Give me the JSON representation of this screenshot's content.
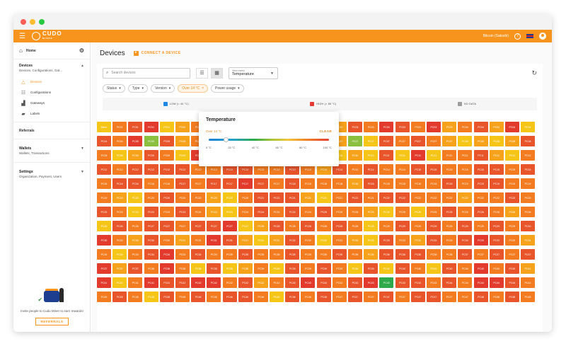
{
  "appbar": {
    "account": "Bitcoin (Satoshi)"
  },
  "sidebar": {
    "home": "Home",
    "devices_section": {
      "title": "Devices",
      "subtitle": "Devices, Configurations, Gat..."
    },
    "items": [
      {
        "label": "Devices",
        "icon": "warning-triangle-icon",
        "active": true
      },
      {
        "label": "Configurations",
        "icon": "sliders-icon",
        "active": false
      },
      {
        "label": "Gateways",
        "icon": "gateway-icon",
        "active": false
      },
      {
        "label": "Labels",
        "icon": "label-icon",
        "active": false
      }
    ],
    "referrals": "Referrals",
    "wallets": {
      "title": "Wallets",
      "subtitle": "Wallets, Transactions"
    },
    "settings": {
      "title": "Settings",
      "subtitle": "Organization, Payment, Users"
    },
    "promo": {
      "text": "Invite people to Cudo Miner to earn rewards!",
      "button": "REFERRALS"
    }
  },
  "main": {
    "title": "Devices",
    "connect": "CONNECT A DEVICE",
    "search_placeholder": "Search devices",
    "metric": {
      "label": "View metric",
      "value": "Temperature"
    },
    "filters": [
      "Status",
      "Type",
      "Version",
      "Over 14 °C",
      "Power usage"
    ],
    "legend": [
      {
        "label": "LOW (< 40 °C)",
        "color": "#1e88e5"
      },
      {
        "label": "HIGH (> 85 °C)",
        "color": "#e53935"
      },
      {
        "label": "NO DATA",
        "color": "#9e9e9e"
      }
    ]
  },
  "popover": {
    "title": "Temperature",
    "current": "Over 14 °C",
    "clear": "CLEAR",
    "ticks": [
      "0 °C",
      "20 °C",
      "40 °C",
      "60 °C",
      "80 °C",
      "100 °C"
    ],
    "threshold_fraction": 0.14
  },
  "grid": {
    "colors": [
      "#f5c518",
      "#f7a21b",
      "#f47c20",
      "#e9552b",
      "#e23b2e",
      "#8bbf3f",
      "#2eaa4a"
    ],
    "rows": [
      {
        "labels": [
          "Miner",
          "PC01",
          "PC01",
          "PC01",
          "PC01",
          "PC02",
          "PC02",
          "PC02",
          "PC02",
          "PC02",
          "PC02",
          "PC03",
          "PC03",
          "PC03",
          "PC03",
          "PC03",
          "PC03",
          "PC03",
          "PC03",
          "PC03",
          "PC03",
          "PC03",
          "PC03",
          "PC04",
          "PC04",
          "PC04",
          "PC04",
          "PC04"
        ],
        "c": [
          0,
          2,
          3,
          4,
          0,
          1,
          2,
          3,
          4,
          0,
          1,
          2,
          3,
          4,
          0,
          1,
          3,
          2,
          4,
          3,
          2,
          4,
          1,
          2,
          3,
          1,
          4,
          0
        ]
      },
      {
        "labels": [
          "PC04",
          "PC04",
          "PC05",
          "PC05",
          "PC05",
          "PC05",
          "PC05",
          "PC05",
          "PC06",
          "PC06",
          "PC06",
          "PC06",
          "PC06",
          "PC06",
          "PC07",
          "PC07",
          "PC07",
          "PC07",
          "PC07",
          "PC07",
          "PC07",
          "PC07",
          "PC07",
          "PC08",
          "PC08",
          "PC08",
          "PC08",
          "PC08"
        ],
        "c": [
          3,
          2,
          4,
          5,
          3,
          1,
          2,
          4,
          0,
          3,
          2,
          1,
          4,
          1,
          2,
          1,
          5,
          0,
          3,
          2,
          3,
          2,
          1,
          0,
          1,
          0,
          1,
          3
        ]
      },
      {
        "labels": [
          "PC08",
          "PC08",
          "PC09",
          "PC09",
          "PC09",
          "PC09",
          "PC09",
          "PC09",
          "PC10",
          "PC10",
          "PC10",
          "PC10",
          "PC10",
          "PC10",
          "PC10",
          "PC10",
          "PC10",
          "PC10",
          "PC11",
          "PC11",
          "PC11",
          "PC11",
          "PC11",
          "PC11",
          "PC11",
          "PC11",
          "PC11",
          "PC12"
        ],
        "c": [
          2,
          0,
          1,
          3,
          2,
          0,
          4,
          3,
          1,
          0,
          3,
          1,
          2,
          3,
          2,
          0,
          1,
          0,
          3,
          0,
          4,
          0,
          2,
          2,
          3,
          1,
          0,
          2
        ]
      },
      {
        "labels": [
          "PC12",
          "PC12",
          "PC12",
          "PC12",
          "PC12",
          "PC12",
          "PC12",
          "PC13",
          "PC13",
          "PC13",
          "PC13",
          "PC13",
          "PC13",
          "PC13",
          "PC14",
          "PC14",
          "PC14",
          "PC14",
          "PC14",
          "PC14",
          "PC15",
          "PC15",
          "PC15",
          "PC15",
          "PC15",
          "PC15",
          "PC15",
          "PC16"
        ],
        "c": [
          3,
          2,
          3,
          3,
          3,
          3,
          2,
          2,
          3,
          3,
          2,
          2,
          3,
          2,
          1,
          3,
          2,
          3,
          2,
          2,
          3,
          3,
          2,
          2,
          3,
          3,
          2,
          3
        ]
      },
      {
        "labels": [
          "PC16",
          "PC16",
          "PC16",
          "PC16",
          "PC16",
          "PC17",
          "PC17",
          "PC17",
          "PC17",
          "PC17",
          "PC17",
          "PC17",
          "PC18",
          "PC18",
          "PC18",
          "PC18",
          "PC18",
          "PC18",
          "PC18",
          "PC18",
          "PC18",
          "PC18",
          "PC18",
          "PC19",
          "PC19",
          "PC19",
          "PC19",
          "PC19"
        ],
        "c": [
          2,
          3,
          3,
          2,
          2,
          3,
          2,
          3,
          3,
          4,
          3,
          2,
          3,
          2,
          2,
          2,
          1,
          3,
          2,
          2,
          2,
          2,
          3,
          2,
          3,
          3,
          2,
          2
        ]
      },
      {
        "labels": [
          "PC19",
          "PC19",
          "PC20",
          "PC20",
          "PC20",
          "PC20",
          "PC20",
          "PC20",
          "PC20",
          "PC20",
          "PC21",
          "PC21",
          "PC21",
          "PC21",
          "PC21",
          "PC21",
          "PC21",
          "PC21",
          "PC22",
          "PC22",
          "PC22",
          "PC22",
          "PC22",
          "PC22",
          "PC22",
          "PC22",
          "PC22",
          "PC23"
        ],
        "c": [
          2,
          1,
          0,
          2,
          3,
          2,
          2,
          1,
          0,
          2,
          3,
          3,
          3,
          1,
          0,
          2,
          3,
          2,
          3,
          3,
          2,
          2,
          2,
          1,
          2,
          2,
          3,
          2
        ]
      },
      {
        "labels": [
          "PC23",
          "PC23",
          "PC23",
          "PC23",
          "PC23",
          "PC23",
          "PC24",
          "PC24",
          "PC24",
          "PC24",
          "PC24",
          "PC24",
          "PC24",
          "PC24",
          "PC25",
          "PC25",
          "PC25",
          "PC25",
          "PC25",
          "PC25",
          "PC25",
          "PC25",
          "PC25",
          "PC25",
          "PC26",
          "PC26",
          "PC26",
          "PC26"
        ],
        "c": [
          3,
          2,
          0,
          3,
          2,
          3,
          2,
          1,
          0,
          2,
          3,
          2,
          3,
          2,
          3,
          2,
          2,
          1,
          0,
          2,
          0,
          2,
          3,
          2,
          3,
          2,
          1,
          2
        ]
      },
      {
        "labels": [
          "PC26",
          "PC26",
          "PC26",
          "PC27",
          "PC27",
          "PC27",
          "PC27",
          "PC27",
          "PC27",
          "PC27",
          "PC28",
          "PC28",
          "PC28",
          "PC28",
          "PC28",
          "PC28",
          "PC28",
          "PC29",
          "PC29",
          "PC29",
          "PC29",
          "PC29",
          "PC29",
          "PC29",
          "PC29",
          "PC29",
          "PC29",
          "PC30"
        ],
        "c": [
          0,
          3,
          2,
          3,
          3,
          2,
          3,
          3,
          4,
          0,
          1,
          3,
          2,
          3,
          2,
          3,
          2,
          0,
          2,
          3,
          2,
          3,
          2,
          3,
          2,
          3,
          2,
          3
        ]
      },
      {
        "labels": [
          "PC30",
          "PC30",
          "PC30",
          "PC30",
          "PC30",
          "PC31",
          "PC31",
          "PC31",
          "PC31",
          "PC31",
          "PC31",
          "PC31",
          "PC32",
          "PC32",
          "PC32",
          "PC32",
          "PC33",
          "PC33",
          "PC33",
          "PC33",
          "PC33",
          "PC33",
          "PC33",
          "PC33",
          "PC33",
          "PC33",
          "PC33",
          "PC34"
        ],
        "c": [
          4,
          2,
          1,
          3,
          2,
          1,
          2,
          4,
          3,
          1,
          0,
          1,
          3,
          2,
          0,
          2,
          1,
          0,
          3,
          2,
          1,
          3,
          2,
          3,
          4,
          3,
          2,
          1
        ]
      },
      {
        "labels": [
          "PC34",
          "PC34",
          "PC34",
          "PC34",
          "PC34",
          "PC34",
          "PC34",
          "PC34",
          "PC35",
          "PC35",
          "PC35",
          "PC35",
          "PC35",
          "PC35",
          "PC35",
          "PC36",
          "PC36",
          "PC36",
          "PC36",
          "PC36",
          "PC36",
          "PC36",
          "PC36",
          "PC37",
          "PC37",
          "PC37",
          "PC37",
          "PC37"
        ],
        "c": [
          2,
          0,
          2,
          3,
          4,
          2,
          3,
          2,
          2,
          3,
          2,
          2,
          3,
          2,
          2,
          3,
          2,
          1,
          3,
          3,
          3,
          2,
          2,
          3,
          2,
          3,
          2,
          3
        ]
      },
      {
        "labels": [
          "PC37",
          "PC37",
          "PC37",
          "PC38",
          "PC38",
          "PC38",
          "PC38",
          "PC38",
          "PC38",
          "PC38",
          "PC39",
          "PC39",
          "PC39",
          "PC39",
          "PC39",
          "PC39",
          "PC39",
          "PC39",
          "PC40",
          "PC40",
          "PC40",
          "PC40",
          "PC40",
          "PC40",
          "PC40",
          "PC40",
          "PC40",
          "PC41"
        ],
        "c": [
          4,
          1,
          3,
          2,
          4,
          2,
          0,
          3,
          0,
          1,
          2,
          0,
          3,
          2,
          3,
          2,
          0,
          3,
          0,
          3,
          2,
          0,
          3,
          2,
          4,
          2,
          3,
          1
        ]
      },
      {
        "labels": [
          "PC41",
          "PC41",
          "PC41",
          "PC41",
          "PC41",
          "PC42",
          "PC42",
          "PC42",
          "PC42",
          "PC42",
          "PC42",
          "PC42",
          "PC43",
          "PC43",
          "PC43",
          "PC43",
          "PC43",
          "PC43",
          "PC43",
          "PC43",
          "PC43",
          "PC43",
          "PC44",
          "PC44",
          "PC44",
          "PC44",
          "PC44",
          "PC44"
        ],
        "c": [
          4,
          0,
          2,
          4,
          3,
          3,
          4,
          4,
          2,
          3,
          1,
          2,
          3,
          4,
          3,
          2,
          3,
          4,
          6,
          3,
          3,
          2,
          3,
          2,
          4,
          4,
          3,
          2
        ]
      },
      {
        "labels": [
          "PC45",
          "PC45",
          "PC45",
          "PC45",
          "PC45",
          "PC45",
          "PC45",
          "PC46",
          "PC46",
          "PC46",
          "PC46",
          "PC46",
          "PC46",
          "PC46",
          "PC46",
          "PC47",
          "PC47",
          "PC47",
          "PC47",
          "PC47",
          "PC47",
          "PC47",
          "PC47",
          "PC47",
          "PC48",
          "PC48",
          "PC48",
          "PC48"
        ],
        "c": [
          2,
          3,
          2,
          0,
          3,
          2,
          3,
          2,
          3,
          3,
          2,
          0,
          3,
          2,
          3,
          2,
          3,
          2,
          3,
          2,
          3,
          3,
          2,
          2,
          3,
          2,
          3,
          2
        ]
      }
    ]
  }
}
